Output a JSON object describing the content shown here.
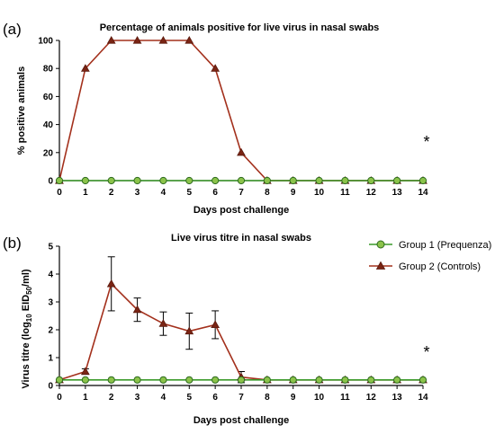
{
  "chart_data": [
    {
      "type": "line",
      "panel_label": "(a)",
      "title": "Percentage of animals positive for live virus in nasal swabs",
      "xlabel": "Days post challenge",
      "ylabel": "% positive animals",
      "x": [
        0,
        1,
        2,
        3,
        4,
        5,
        6,
        7,
        8,
        9,
        10,
        11,
        12,
        13,
        14
      ],
      "xticks": [
        0,
        1,
        2,
        3,
        4,
        5,
        6,
        7,
        8,
        9,
        10,
        11,
        12,
        13,
        14
      ],
      "yticks": [
        0,
        20,
        40,
        60,
        80,
        100
      ],
      "ylim": [
        0,
        100
      ],
      "xlim": [
        0,
        14
      ],
      "significance_marker": "*",
      "series": [
        {
          "name": "Group 1 (Prequenza)",
          "values": [
            0,
            0,
            0,
            0,
            0,
            0,
            0,
            0,
            0,
            0,
            0,
            0,
            0,
            0,
            0
          ]
        },
        {
          "name": "Group 2 (Controls)",
          "values": [
            0,
            80,
            100,
            100,
            100,
            100,
            80,
            20,
            0,
            0,
            0,
            0,
            0,
            0,
            0
          ]
        }
      ]
    },
    {
      "type": "line",
      "panel_label": "(b)",
      "title": "Live virus titre in nasal swabs",
      "xlabel": "Days post challenge",
      "ylabel": "Virus titre (log10 EID50/ml)",
      "x": [
        0,
        1,
        2,
        3,
        4,
        5,
        6,
        7,
        8,
        9,
        10,
        11,
        12,
        13,
        14
      ],
      "xticks": [
        0,
        1,
        2,
        3,
        4,
        5,
        6,
        7,
        8,
        9,
        10,
        11,
        12,
        13,
        14
      ],
      "yticks": [
        0,
        1,
        2,
        3,
        4,
        5
      ],
      "ylim": [
        0,
        5
      ],
      "xlim": [
        0,
        14
      ],
      "significance_marker": "*",
      "legend_position": "top-right",
      "series": [
        {
          "name": "Group 1 (Prequenza)",
          "values": [
            0.2,
            0.2,
            0.2,
            0.2,
            0.2,
            0.2,
            0.2,
            0.2,
            0.2,
            0.2,
            0.2,
            0.2,
            0.2,
            0.2,
            0.2
          ]
        },
        {
          "name": "Group 2 (Controls)",
          "values": [
            0.2,
            0.5,
            3.65,
            2.72,
            2.22,
            1.95,
            2.18,
            0.3,
            0.2,
            0.2,
            0.2,
            0.2,
            0.2,
            0.2,
            0.2
          ],
          "error": [
            0,
            0.1,
            0.97,
            0.42,
            0.42,
            0.65,
            0.5,
            0.2,
            0,
            0,
            0,
            0,
            0,
            0,
            0
          ]
        }
      ]
    }
  ],
  "legend": {
    "entries": [
      {
        "label": "Group 1 (Prequenza)",
        "marker": "circle",
        "color": "#2e7d1f",
        "fill": "#8bc34a"
      },
      {
        "label": "Group 2 (Controls)",
        "marker": "triangle",
        "color": "#8b2a1a",
        "fill": "#8b2a1a"
      }
    ]
  },
  "colors": {
    "group1_line": "#3a9a2a",
    "group1_fill": "#8bc34a",
    "group1_edge": "#2e6b1f",
    "group2_line": "#a3301c",
    "group2_fill": "#7a2414",
    "axis": "#000000",
    "error_bar": "#000000"
  }
}
